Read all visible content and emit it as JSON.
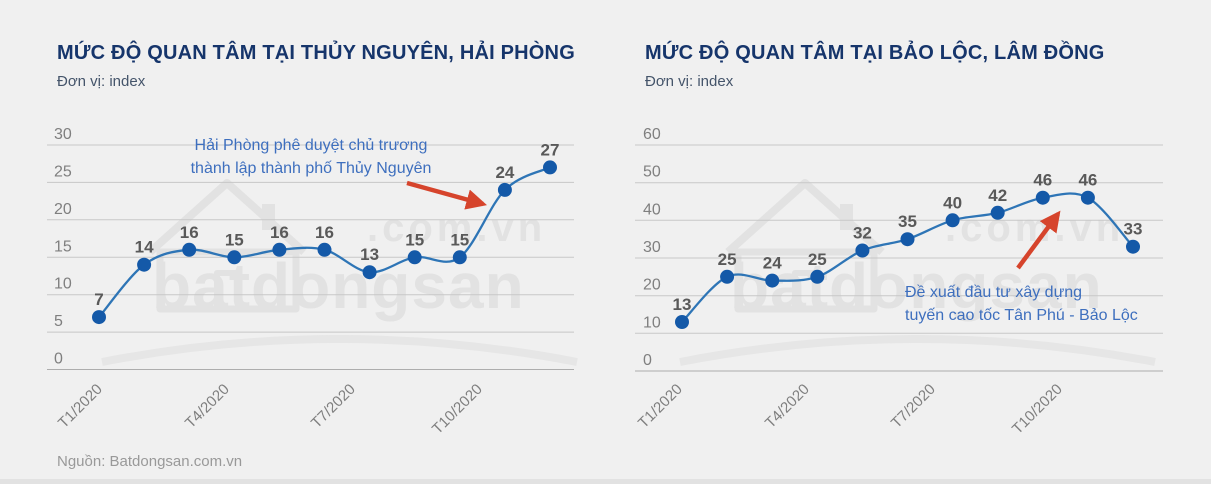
{
  "page": {
    "background": "#f0f0f0",
    "source": "Nguồn: Batdongsan.com.vn",
    "watermark": {
      "line1": ".com.vn",
      "line2": "batdongsan",
      "icon": "house-logo"
    }
  },
  "colors": {
    "background": "#f0f0f0",
    "title": "#16356b",
    "subtitle": "#44546a",
    "line": "#2e75b6",
    "marker": "#1459a8",
    "data_label": "#595959",
    "axis_label": "#7f7f7f",
    "gridline": "#c7c7c7",
    "axis_line": "#adadad",
    "annotation_text": "#3e6fbe",
    "annotation_arrow": "#d6442c",
    "watermark": "#e2e2e2",
    "source_text": "#999999"
  },
  "chart_data": [
    {
      "type": "line",
      "title": "MỨC ĐỘ QUAN TÂM TẠI THỦY NGUYÊN, HẢI PHÒNG",
      "subtitle": "Đơn vị: index",
      "categories": [
        "T1/2020",
        "T2/2020",
        "T3/2020",
        "T4/2020",
        "T5/2020",
        "T6/2020",
        "T7/2020",
        "T8/2020",
        "T9/2020",
        "T10/2020",
        "T11/2020"
      ],
      "values": [
        7,
        14,
        16,
        15,
        16,
        16,
        13,
        15,
        15,
        24,
        27
      ],
      "x_tick_labels": [
        "T1/2020",
        "T4/2020",
        "T7/2020",
        "T10/2020"
      ],
      "x_tick_indices": [
        0,
        3,
        6,
        9
      ],
      "yticks": [
        0,
        5,
        10,
        15,
        20,
        25,
        30
      ],
      "ylim": [
        0,
        30
      ],
      "ylabel": "index",
      "grid": true,
      "legend": false,
      "annotation": {
        "lines": [
          "Hải Phòng phê duyệt chủ trương",
          "thành lập thành phố Thủy Nguyên"
        ]
      }
    },
    {
      "type": "line",
      "title": "MỨC ĐỘ QUAN TÂM TẠI BẢO LỘC, LÂM ĐỒNG",
      "subtitle": "Đơn vị: index",
      "categories": [
        "T1/2020",
        "T2/2020",
        "T3/2020",
        "T4/2020",
        "T5/2020",
        "T6/2020",
        "T7/2020",
        "T8/2020",
        "T9/2020",
        "T10/2020",
        "T11/2020"
      ],
      "values": [
        13,
        25,
        24,
        25,
        32,
        35,
        40,
        42,
        46,
        46,
        33
      ],
      "x_tick_labels": [
        "T1/2020",
        "T4/2020",
        "T7/2020",
        "T10/2020"
      ],
      "x_tick_indices": [
        0,
        3,
        6,
        9
      ],
      "yticks": [
        0,
        10,
        20,
        30,
        40,
        50,
        60
      ],
      "ylim": [
        0,
        60
      ],
      "ylabel": "index",
      "grid": true,
      "legend": false,
      "annotation": {
        "lines": [
          "Đề xuất đầu tư xây dựng",
          "tuyến cao tốc Tân Phú - Bảo Lộc"
        ]
      }
    }
  ]
}
